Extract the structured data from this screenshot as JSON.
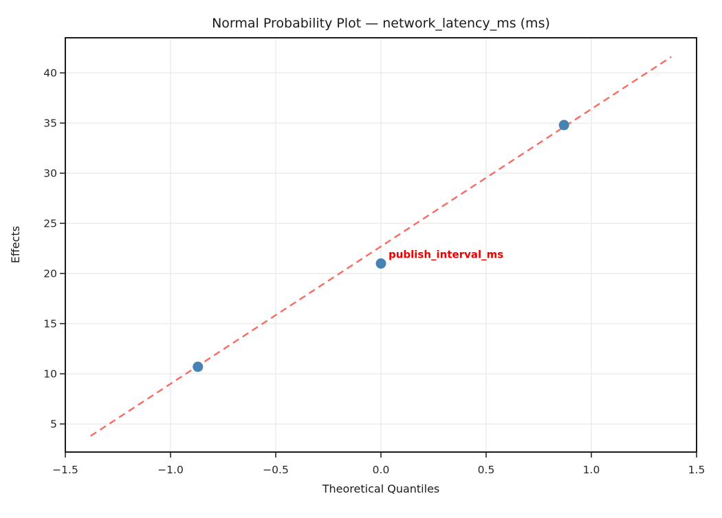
{
  "chart_data": {
    "type": "scatter",
    "title": "Normal Probability Plot — network_latency_ms (ms)",
    "xlabel": "Theoretical Quantiles",
    "ylabel": "Effects",
    "xlim": [
      -1.5,
      1.5
    ],
    "ylim": [
      2.2,
      43.5
    ],
    "x_ticks": [
      -1.5,
      -1.0,
      -0.5,
      0.0,
      0.5,
      1.0,
      1.5
    ],
    "x_tick_labels": [
      "−1.5",
      "−1.0",
      "−0.5",
      "0.0",
      "0.5",
      "1.0",
      "1.5"
    ],
    "y_ticks": [
      5,
      10,
      15,
      20,
      25,
      30,
      35,
      40
    ],
    "y_tick_labels": [
      "5",
      "10",
      "15",
      "20",
      "25",
      "30",
      "35",
      "40"
    ],
    "grid": true,
    "legend": "none",
    "series": [
      {
        "name": "effects",
        "marker": "circle",
        "points": [
          {
            "x": -0.87,
            "y": 10.7
          },
          {
            "x": 0.0,
            "y": 21.0
          },
          {
            "x": 0.87,
            "y": 34.8
          }
        ]
      }
    ],
    "fit_line": {
      "style": "dashed",
      "x1": -1.38,
      "y1": 3.8,
      "x2": 1.38,
      "y2": 41.6
    },
    "annotation": {
      "text": "publish_interval_ms",
      "anchor_x": 0.0,
      "anchor_y": 21.0,
      "offset_x": 11,
      "offset_y": -8
    },
    "colors": {
      "point": "#4682B4",
      "fit_line": "#FA6A62",
      "annotation": "#F00000",
      "grid": "#E9E9E9",
      "spine": "#1A1A1A",
      "tick": "#262626",
      "text": "#1A1A1A",
      "background": "#FFFFFF"
    }
  }
}
